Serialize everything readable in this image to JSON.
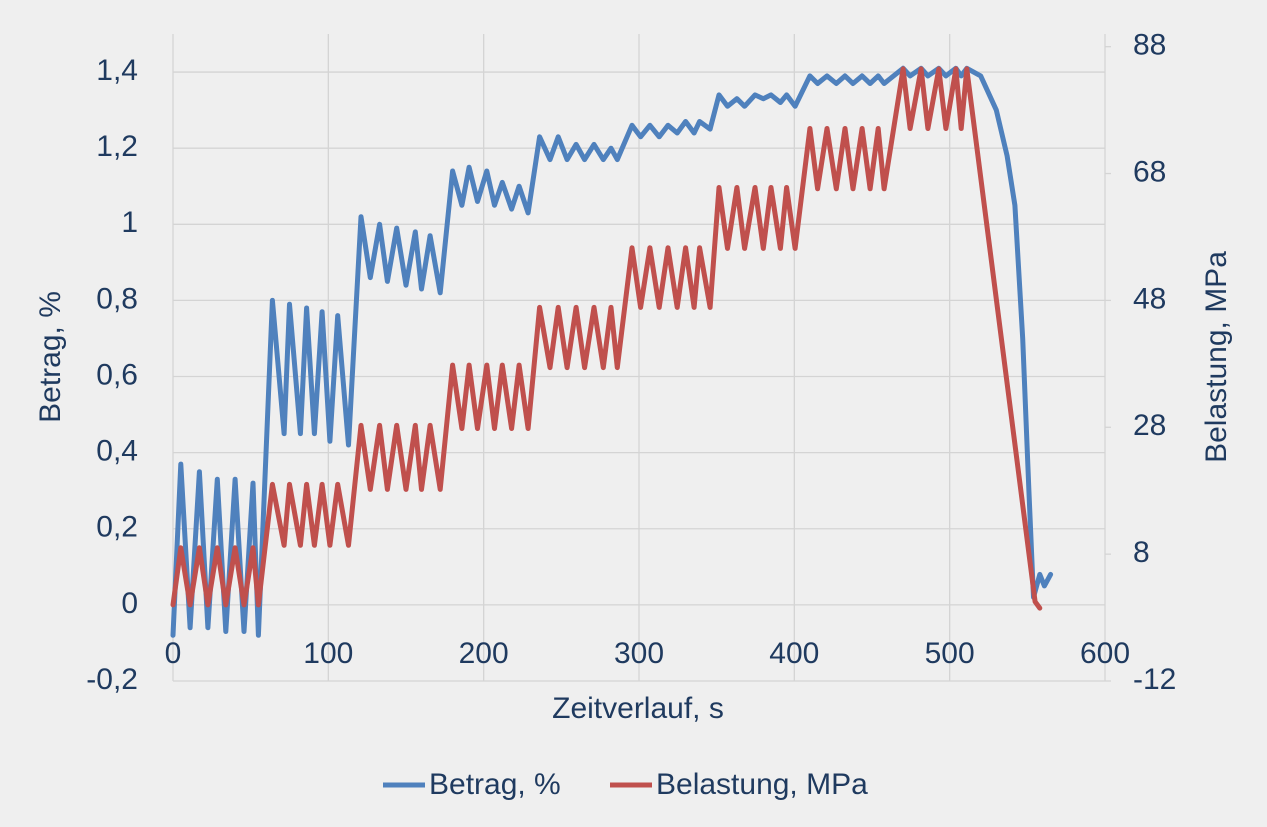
{
  "chart_data": {
    "type": "line",
    "xlabel": "Zeitverlauf, s",
    "ylabel": "Betrag, %",
    "y2label": "Belastung, MPa",
    "xlim": [
      0,
      600
    ],
    "xticks": [
      0,
      100,
      200,
      300,
      400,
      500,
      600
    ],
    "ylim": [
      -0.2,
      1.5
    ],
    "yticks": [
      {
        "value": -0.2,
        "label": "-0,2"
      },
      0,
      {
        "value": 0.2,
        "label": "0,2"
      },
      {
        "value": 0.4,
        "label": "0,4"
      },
      {
        "value": 0.6,
        "label": "0,6"
      },
      {
        "value": 0.8,
        "label": "0,8"
      },
      1,
      {
        "value": 1.2,
        "label": "1,2"
      },
      {
        "value": 1.4,
        "label": "1,4"
      }
    ],
    "y2lim": [
      -12,
      90
    ],
    "y2ticks": [
      -12,
      8,
      28,
      48,
      68,
      88
    ],
    "grid": true,
    "legend": "bottom",
    "series": [
      {
        "name": "Betrag, %",
        "color": "#4f81bd",
        "axis": "y",
        "x": [
          0,
          5,
          11,
          17,
          22.5,
          28.5,
          34,
          40,
          45.7,
          51.5,
          55,
          64,
          71.5,
          75,
          82,
          86,
          91,
          96,
          101,
          106,
          113,
          121,
          127,
          133,
          138,
          144,
          150,
          156,
          160,
          165.5,
          172,
          180,
          186,
          190.6,
          196,
          202,
          207,
          212,
          218,
          222.8,
          228.6,
          236,
          242.7,
          248,
          253.7,
          259.5,
          265,
          271,
          277,
          282,
          286,
          295.5,
          301,
          307,
          313,
          318.7,
          324.6,
          330,
          335.5,
          339,
          345.8,
          351.5,
          357,
          363,
          368,
          374.7,
          380,
          385,
          391,
          395,
          400.5,
          410,
          415,
          421,
          427,
          432.6,
          437.8,
          443.6,
          448.8,
          454,
          457.8,
          470,
          474.5,
          481.6,
          486,
          493,
          497.6,
          504,
          507.4,
          511,
          520,
          530,
          537,
          542,
          547,
          551,
          554,
          558,
          561,
          565
        ],
        "values": [
          -0.08,
          0.37,
          -0.06,
          0.35,
          -0.06,
          0.33,
          -0.07,
          0.33,
          -0.07,
          0.32,
          -0.08,
          0.8,
          0.45,
          0.79,
          0.45,
          0.78,
          0.45,
          0.77,
          0.43,
          0.76,
          0.42,
          1.02,
          0.86,
          1.0,
          0.85,
          0.99,
          0.84,
          0.98,
          0.83,
          0.97,
          0.82,
          1.14,
          1.05,
          1.15,
          1.06,
          1.14,
          1.05,
          1.11,
          1.04,
          1.1,
          1.03,
          1.23,
          1.17,
          1.23,
          1.17,
          1.21,
          1.17,
          1.21,
          1.17,
          1.2,
          1.17,
          1.26,
          1.23,
          1.26,
          1.23,
          1.26,
          1.24,
          1.27,
          1.24,
          1.27,
          1.25,
          1.34,
          1.31,
          1.33,
          1.31,
          1.34,
          1.33,
          1.34,
          1.32,
          1.34,
          1.31,
          1.39,
          1.37,
          1.39,
          1.37,
          1.39,
          1.37,
          1.39,
          1.37,
          1.39,
          1.37,
          1.41,
          1.39,
          1.41,
          1.39,
          1.41,
          1.39,
          1.41,
          1.39,
          1.41,
          1.39,
          1.3,
          1.18,
          1.05,
          0.7,
          0.3,
          0.02,
          0.08,
          0.05,
          0.08
        ]
      },
      {
        "name": "Belastung, MPa",
        "color": "#c0504d",
        "axis": "y2",
        "x": [
          0,
          5,
          11,
          17,
          22.5,
          28.5,
          34,
          40,
          45.7,
          51.5,
          55,
          64,
          71.5,
          75,
          82,
          86,
          91,
          96,
          101,
          106,
          113,
          121,
          127,
          133,
          138,
          144,
          150,
          156,
          160,
          165.5,
          172,
          180,
          186,
          190.6,
          196,
          202,
          207,
          212,
          218,
          222.8,
          228.6,
          236,
          242.7,
          248,
          253.7,
          259.5,
          265,
          271,
          277,
          282,
          286,
          295.5,
          301,
          307,
          313,
          318.7,
          324.6,
          330,
          335.5,
          339,
          345.8,
          351.5,
          357,
          363,
          368,
          374.7,
          380,
          385,
          391,
          395,
          400.5,
          410,
          415,
          421,
          427,
          432.6,
          437.8,
          443.6,
          448.8,
          454,
          457.8,
          470,
          474.5,
          481.6,
          486,
          493,
          497.6,
          504,
          507.4,
          511,
          555,
          558
        ],
        "values": [
          0,
          9,
          0,
          9,
          0,
          9,
          0,
          9,
          0,
          9,
          0,
          19,
          9.4,
          19,
          9.4,
          19,
          9.4,
          19,
          9.4,
          19,
          9.4,
          28.3,
          18.2,
          28.3,
          18.2,
          28.3,
          18.2,
          28.3,
          18.2,
          28.3,
          18.2,
          37.8,
          27.8,
          37.8,
          27.8,
          37.8,
          27.8,
          37.8,
          27.8,
          37.8,
          27.8,
          46.9,
          37.4,
          46.9,
          37.4,
          46.9,
          37.4,
          46.9,
          37.4,
          46.9,
          37.4,
          56.3,
          46.9,
          56.3,
          46.9,
          56.3,
          46.9,
          56.3,
          46.9,
          56.3,
          46.9,
          65.8,
          56.2,
          65.8,
          56.2,
          65.8,
          56.2,
          65.8,
          56.2,
          65.8,
          56.2,
          75.1,
          65.6,
          75.1,
          65.6,
          75.1,
          65.6,
          75.1,
          65.6,
          75.1,
          65.6,
          84.5,
          75.1,
          84.5,
          75.1,
          84.5,
          75.1,
          84.5,
          75.1,
          84.5,
          0.5,
          -0.5
        ]
      }
    ]
  }
}
